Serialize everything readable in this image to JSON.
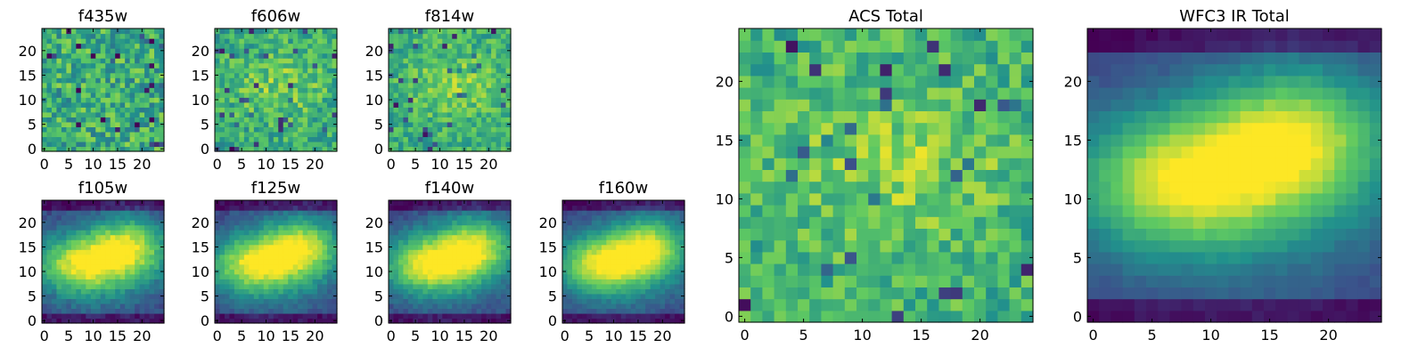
{
  "figure": {
    "colormap": [
      "#440154",
      "#3b528b",
      "#21918c",
      "#5ec962",
      "#fde725"
    ]
  },
  "chart_data": [
    {
      "type": "heatmap",
      "title": "f435w",
      "grid_size": 25,
      "xlim": [
        0,
        24
      ],
      "ylim": [
        0,
        24
      ],
      "xticks": [
        0,
        5,
        10,
        15,
        20
      ],
      "yticks": [
        0,
        5,
        10,
        15,
        20
      ],
      "pattern": "noise-uniform",
      "mean_level": 0.62,
      "noise": 0.22
    },
    {
      "type": "heatmap",
      "title": "f606w",
      "grid_size": 25,
      "xlim": [
        0,
        24
      ],
      "ylim": [
        0,
        24
      ],
      "xticks": [
        0,
        5,
        10,
        15,
        20
      ],
      "yticks": [
        0,
        5,
        10,
        15,
        20
      ],
      "pattern": "faint-blob",
      "mean_level": 0.6,
      "noise": 0.18
    },
    {
      "type": "heatmap",
      "title": "f814w",
      "grid_size": 25,
      "xlim": [
        0,
        24
      ],
      "ylim": [
        0,
        24
      ],
      "xticks": [
        0,
        5,
        10,
        15,
        20
      ],
      "yticks": [
        0,
        5,
        10,
        15,
        20
      ],
      "pattern": "faint-blob",
      "mean_level": 0.62,
      "noise": 0.16
    },
    {
      "type": "heatmap",
      "title": "f105w",
      "grid_size": 25,
      "xlim": [
        0,
        24
      ],
      "ylim": [
        0,
        24
      ],
      "xticks": [
        0,
        5,
        10,
        15,
        20
      ],
      "yticks": [
        0,
        5,
        10,
        15,
        20
      ],
      "pattern": "galaxy",
      "mean_level": 0.55,
      "noise": 0.07
    },
    {
      "type": "heatmap",
      "title": "f125w",
      "grid_size": 25,
      "xlim": [
        0,
        24
      ],
      "ylim": [
        0,
        24
      ],
      "xticks": [
        0,
        5,
        10,
        15,
        20
      ],
      "yticks": [
        0,
        5,
        10,
        15,
        20
      ],
      "pattern": "galaxy",
      "mean_level": 0.55,
      "noise": 0.06
    },
    {
      "type": "heatmap",
      "title": "f140w",
      "grid_size": 25,
      "xlim": [
        0,
        24
      ],
      "ylim": [
        0,
        24
      ],
      "xticks": [
        0,
        5,
        10,
        15,
        20
      ],
      "yticks": [
        0,
        5,
        10,
        15,
        20
      ],
      "pattern": "galaxy",
      "mean_level": 0.55,
      "noise": 0.06
    },
    {
      "type": "heatmap",
      "title": "f160w",
      "grid_size": 25,
      "xlim": [
        0,
        24
      ],
      "ylim": [
        0,
        24
      ],
      "xticks": [
        0,
        5,
        10,
        15,
        20
      ],
      "yticks": [
        0,
        5,
        10,
        15,
        20
      ],
      "pattern": "galaxy",
      "mean_level": 0.55,
      "noise": 0.05
    },
    {
      "type": "heatmap",
      "title": "ACS Total",
      "grid_size": 25,
      "xlim": [
        0,
        24
      ],
      "ylim": [
        0,
        24
      ],
      "xticks": [
        0,
        5,
        10,
        15,
        20
      ],
      "yticks": [
        0,
        5,
        10,
        15,
        20
      ],
      "pattern": "faint-blob",
      "mean_level": 0.64,
      "noise": 0.17
    },
    {
      "type": "heatmap",
      "title": "WFC3 IR Total",
      "grid_size": 25,
      "xlim": [
        0,
        24
      ],
      "ylim": [
        0,
        24
      ],
      "xticks": [
        0,
        5,
        10,
        15,
        20
      ],
      "yticks": [
        0,
        5,
        10,
        15,
        20
      ],
      "pattern": "galaxy",
      "mean_level": 0.55,
      "noise": 0.03
    }
  ]
}
